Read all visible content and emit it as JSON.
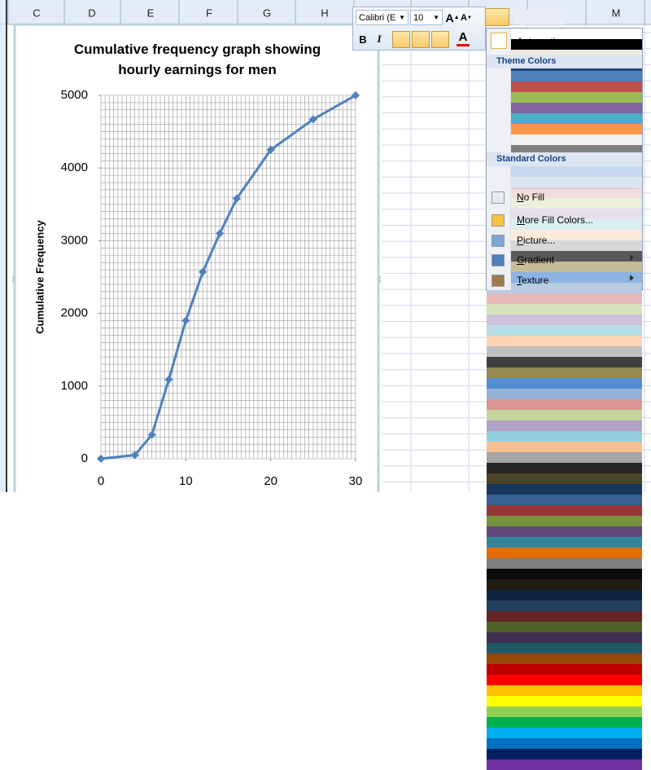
{
  "spreadsheet": {
    "columns": [
      "C",
      "D",
      "E",
      "F",
      "G",
      "H",
      "M"
    ]
  },
  "chart_data": {
    "type": "line",
    "title": "Cumulative frequency graph showing hourly earnings for men",
    "y_label": "Cumulative Frequency",
    "x": [
      0,
      4,
      6,
      8,
      10,
      12,
      14,
      16,
      20,
      25,
      30
    ],
    "series": [
      {
        "name": "Cumulative frequency",
        "color": "#4f81bd",
        "values": [
          0,
          50,
          330,
          1090,
          1900,
          2570,
          3100,
          3580,
          4250,
          4670,
          5000
        ]
      }
    ],
    "xlim": [
      0,
      30
    ],
    "xticks": [
      0,
      10,
      20,
      30
    ],
    "ylim": [
      0,
      5000
    ],
    "yticks": [
      0,
      1000,
      2000,
      3000,
      4000,
      5000
    ],
    "grid": true,
    "grid_step": [
      0.5,
      100
    ],
    "legend": false
  },
  "toolbar": {
    "font": "Calibri (E",
    "size": "10",
    "grow": "A",
    "shrink": "A",
    "bold": "B",
    "italic": "I",
    "font_color": "A"
  },
  "menu": {
    "automatic": "Automatic",
    "theme_header": "Theme Colors",
    "theme_colors": [
      [
        "#ffffff",
        "#000000",
        "#eeece1",
        "#1f497d",
        "#4f81bd",
        "#c0504d",
        "#9bbb59",
        "#8064a2",
        "#4bacc6",
        "#f79646"
      ],
      [
        "#f2f2f2",
        "#7f7f7f",
        "#ddd9c3",
        "#c6d9f0",
        "#dbe5f1",
        "#f2dcdb",
        "#ebf1dd",
        "#e5e0ec",
        "#dbeef3",
        "#fdeada"
      ],
      [
        "#d8d8d8",
        "#595959",
        "#c4bd97",
        "#8db3e2",
        "#b8cce4",
        "#e5b9b7",
        "#d7e3bc",
        "#ccc1d9",
        "#b7dde8",
        "#fbd5b5"
      ],
      [
        "#bfbfbf",
        "#3f3f3f",
        "#938953",
        "#548dd4",
        "#95b3d7",
        "#d99694",
        "#c3d69b",
        "#b2a2c7",
        "#92cddc",
        "#fac08f"
      ],
      [
        "#a5a5a5",
        "#262626",
        "#494429",
        "#17365d",
        "#366092",
        "#953734",
        "#76923c",
        "#5f497a",
        "#31859b",
        "#e36c09"
      ],
      [
        "#7f7f7f",
        "#0c0c0c",
        "#1d1b10",
        "#0f243e",
        "#244061",
        "#632423",
        "#4f6128",
        "#3f3151",
        "#205867",
        "#974806"
      ]
    ],
    "standard_header": "Standard Colors",
    "standard_colors": [
      "#c00000",
      "#ff0000",
      "#ffc000",
      "#ffff00",
      "#92d050",
      "#00b050",
      "#00b0f0",
      "#0070c0",
      "#002060",
      "#7030a0"
    ],
    "items": [
      "No Fill",
      "More Fill Colors...",
      "Picture...",
      "Gradient",
      "Texture"
    ]
  }
}
